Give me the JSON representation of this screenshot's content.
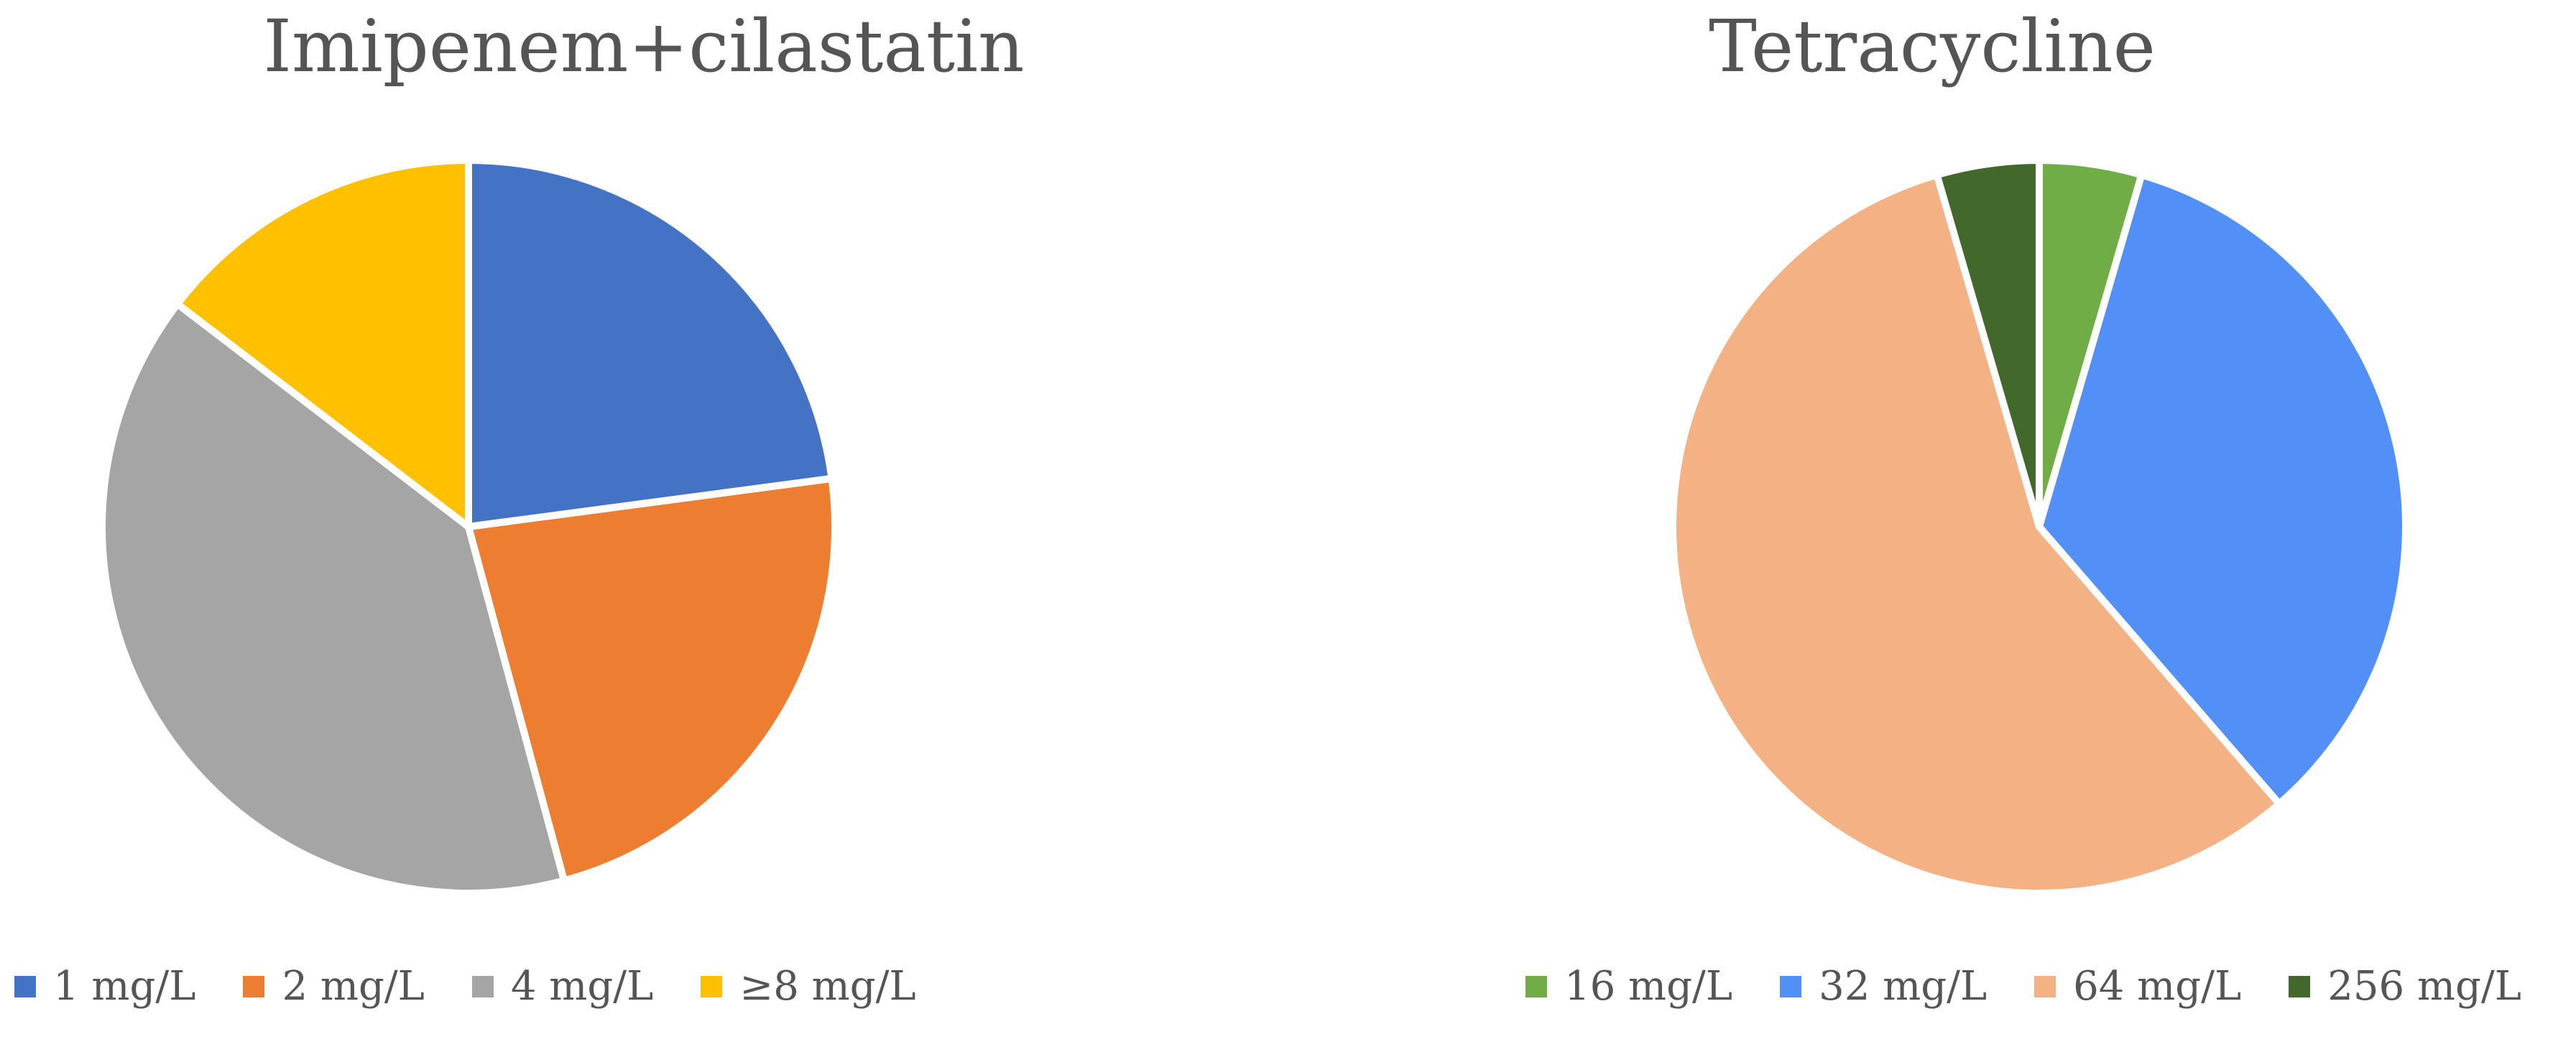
{
  "chart_data": [
    {
      "type": "pie",
      "title": "Imipenem+cilastatin",
      "categories": [
        "1 mg/L",
        "2 mg/L",
        "4 mg/L",
        "≥8 mg/L"
      ],
      "values": [
        22.9,
        22.9,
        39.6,
        14.6
      ],
      "colors": [
        "#4472C4",
        "#ED7D31",
        "#A5A5A5",
        "#FFC000"
      ],
      "legend": "bottom"
    },
    {
      "type": "pie",
      "title": "Tetracycline",
      "categories": [
        "16 mg/L",
        "32 mg/L",
        "64 mg/L",
        "256 mg/L"
      ],
      "values": [
        4.5,
        34.1,
        56.8,
        4.5
      ],
      "colors": [
        "#70AD47",
        "#528FF6",
        "#F4B183",
        "#43682B"
      ],
      "legend": "bottom"
    }
  ]
}
